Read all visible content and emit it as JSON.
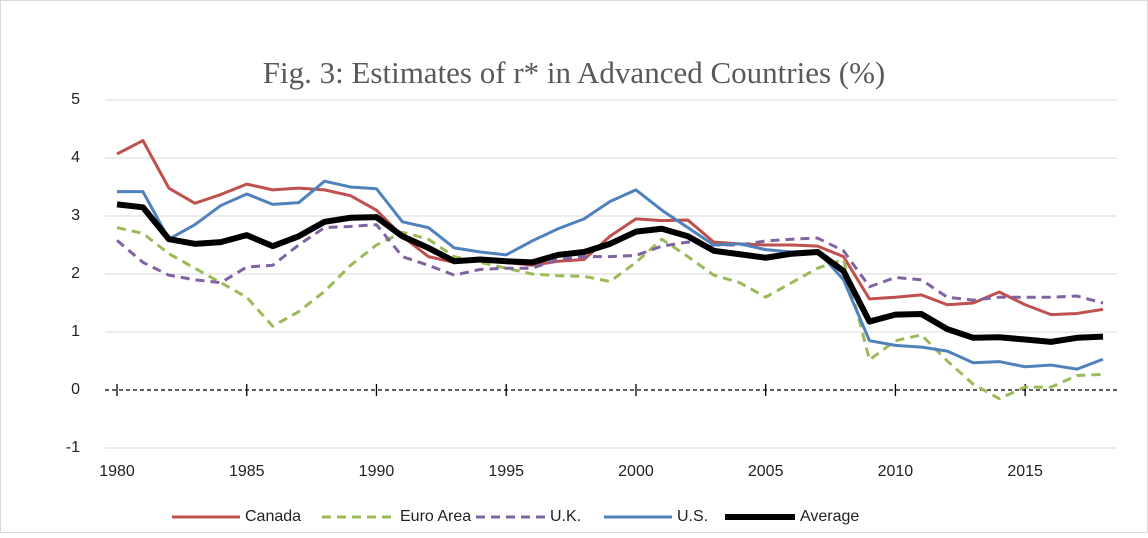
{
  "chart_data": {
    "type": "line",
    "title": "Fig. 3: Estimates of r* in Advanced Countries (%)",
    "x": [
      1980,
      1981,
      1982,
      1983,
      1984,
      1985,
      1986,
      1987,
      1988,
      1989,
      1990,
      1991,
      1992,
      1993,
      1994,
      1995,
      1996,
      1997,
      1998,
      1999,
      2000,
      2001,
      2002,
      2003,
      2004,
      2005,
      2006,
      2007,
      2008,
      2009,
      2010,
      2011,
      2012,
      2013,
      2014,
      2015,
      2016,
      2017,
      2018
    ],
    "series": [
      {
        "name": "Canada",
        "color": "#c0504d",
        "dashed": false,
        "line_width": 3,
        "values": [
          4.07,
          4.3,
          3.48,
          3.22,
          3.37,
          3.55,
          3.45,
          3.48,
          3.45,
          3.35,
          3.1,
          2.65,
          2.3,
          2.2,
          2.25,
          2.2,
          2.15,
          2.22,
          2.25,
          2.65,
          2.95,
          2.92,
          2.93,
          2.55,
          2.52,
          2.5,
          2.5,
          2.48,
          2.3,
          1.57,
          1.6,
          1.64,
          1.47,
          1.5,
          1.69,
          1.47,
          1.3,
          1.32,
          1.39
        ]
      },
      {
        "name": "Euro Area",
        "color": "#9bbb59",
        "dashed": true,
        "line_width": 3,
        "values": [
          2.8,
          2.7,
          2.35,
          2.1,
          1.85,
          1.6,
          1.1,
          1.35,
          1.7,
          2.15,
          2.5,
          2.72,
          2.6,
          2.3,
          2.2,
          2.1,
          2.0,
          1.97,
          1.96,
          1.87,
          2.2,
          2.6,
          2.3,
          1.98,
          1.85,
          1.6,
          1.85,
          2.1,
          2.25,
          0.52,
          0.85,
          0.95,
          0.5,
          0.1,
          -0.15,
          0.05,
          0.05,
          0.25,
          0.27
        ]
      },
      {
        "name": "U.K.",
        "color": "#8064a2",
        "dashed": true,
        "line_width": 3,
        "values": [
          2.58,
          2.2,
          1.98,
          1.9,
          1.85,
          2.12,
          2.15,
          2.5,
          2.8,
          2.82,
          2.85,
          2.3,
          2.15,
          1.98,
          2.08,
          2.1,
          2.1,
          2.25,
          2.3,
          2.3,
          2.32,
          2.48,
          2.55,
          2.5,
          2.5,
          2.57,
          2.6,
          2.62,
          2.4,
          1.78,
          1.94,
          1.9,
          1.6,
          1.55,
          1.6,
          1.6,
          1.6,
          1.62,
          1.5
        ]
      },
      {
        "name": "U.S.",
        "color": "#4f81bd",
        "dashed": false,
        "line_width": 3,
        "values": [
          3.42,
          3.42,
          2.6,
          2.85,
          3.18,
          3.38,
          3.2,
          3.23,
          3.6,
          3.5,
          3.47,
          2.9,
          2.8,
          2.45,
          2.38,
          2.33,
          2.57,
          2.78,
          2.95,
          3.25,
          3.45,
          3.1,
          2.8,
          2.5,
          2.52,
          2.42,
          2.38,
          2.4,
          1.9,
          0.85,
          0.77,
          0.74,
          0.67,
          0.47,
          0.49,
          0.4,
          0.43,
          0.36,
          0.53
        ]
      },
      {
        "name": "Average",
        "color": "#000000",
        "dashed": false,
        "line_width": 6,
        "values": [
          3.2,
          3.15,
          2.6,
          2.52,
          2.55,
          2.67,
          2.48,
          2.65,
          2.9,
          2.97,
          2.98,
          2.65,
          2.45,
          2.22,
          2.25,
          2.22,
          2.2,
          2.33,
          2.38,
          2.52,
          2.73,
          2.78,
          2.65,
          2.4,
          2.34,
          2.28,
          2.35,
          2.38,
          2.05,
          1.18,
          1.3,
          1.31,
          1.05,
          0.9,
          0.91,
          0.87,
          0.83,
          0.9,
          0.92
        ]
      }
    ],
    "xlim": [
      1980,
      2018
    ],
    "xticks": [
      1980,
      1985,
      1990,
      1995,
      2000,
      2005,
      2010,
      2015
    ],
    "ylim": [
      -1,
      5
    ],
    "yticks": [
      -1,
      0,
      1,
      2,
      3,
      4,
      5
    ],
    "grid": true,
    "legend": "bottom"
  }
}
